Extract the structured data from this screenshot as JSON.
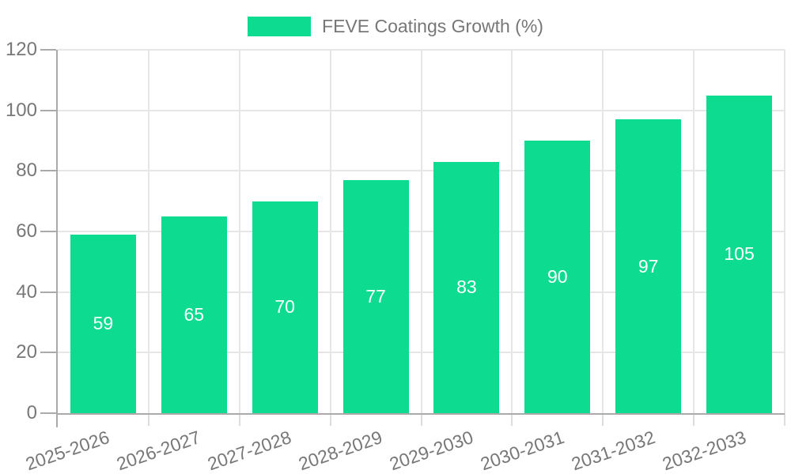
{
  "chart_data": {
    "type": "bar",
    "legend_label": "FEVE Coatings Growth (%)",
    "legend_position": "top",
    "categories": [
      "2025-2026",
      "2026-2027",
      "2027-2028",
      "2028-2029",
      "2029-2030",
      "2030-2031",
      "2031-2032",
      "2032-2033"
    ],
    "values": [
      59,
      65,
      70,
      77,
      83,
      90,
      97,
      105
    ],
    "xlabel": "",
    "ylabel": "",
    "ylim": [
      0,
      120
    ],
    "yticks": [
      0,
      20,
      40,
      60,
      80,
      100,
      120
    ],
    "grid": true,
    "xtick_rotation_deg": -19,
    "colors": {
      "bar": "#0ddc90",
      "bar_value_text": "#ffffff",
      "axis_text": "#777777",
      "axis_line": "#aaaaaa",
      "gridline": "#e6e6e6",
      "category_tick": "#dddddd",
      "background": "#ffffff"
    }
  }
}
